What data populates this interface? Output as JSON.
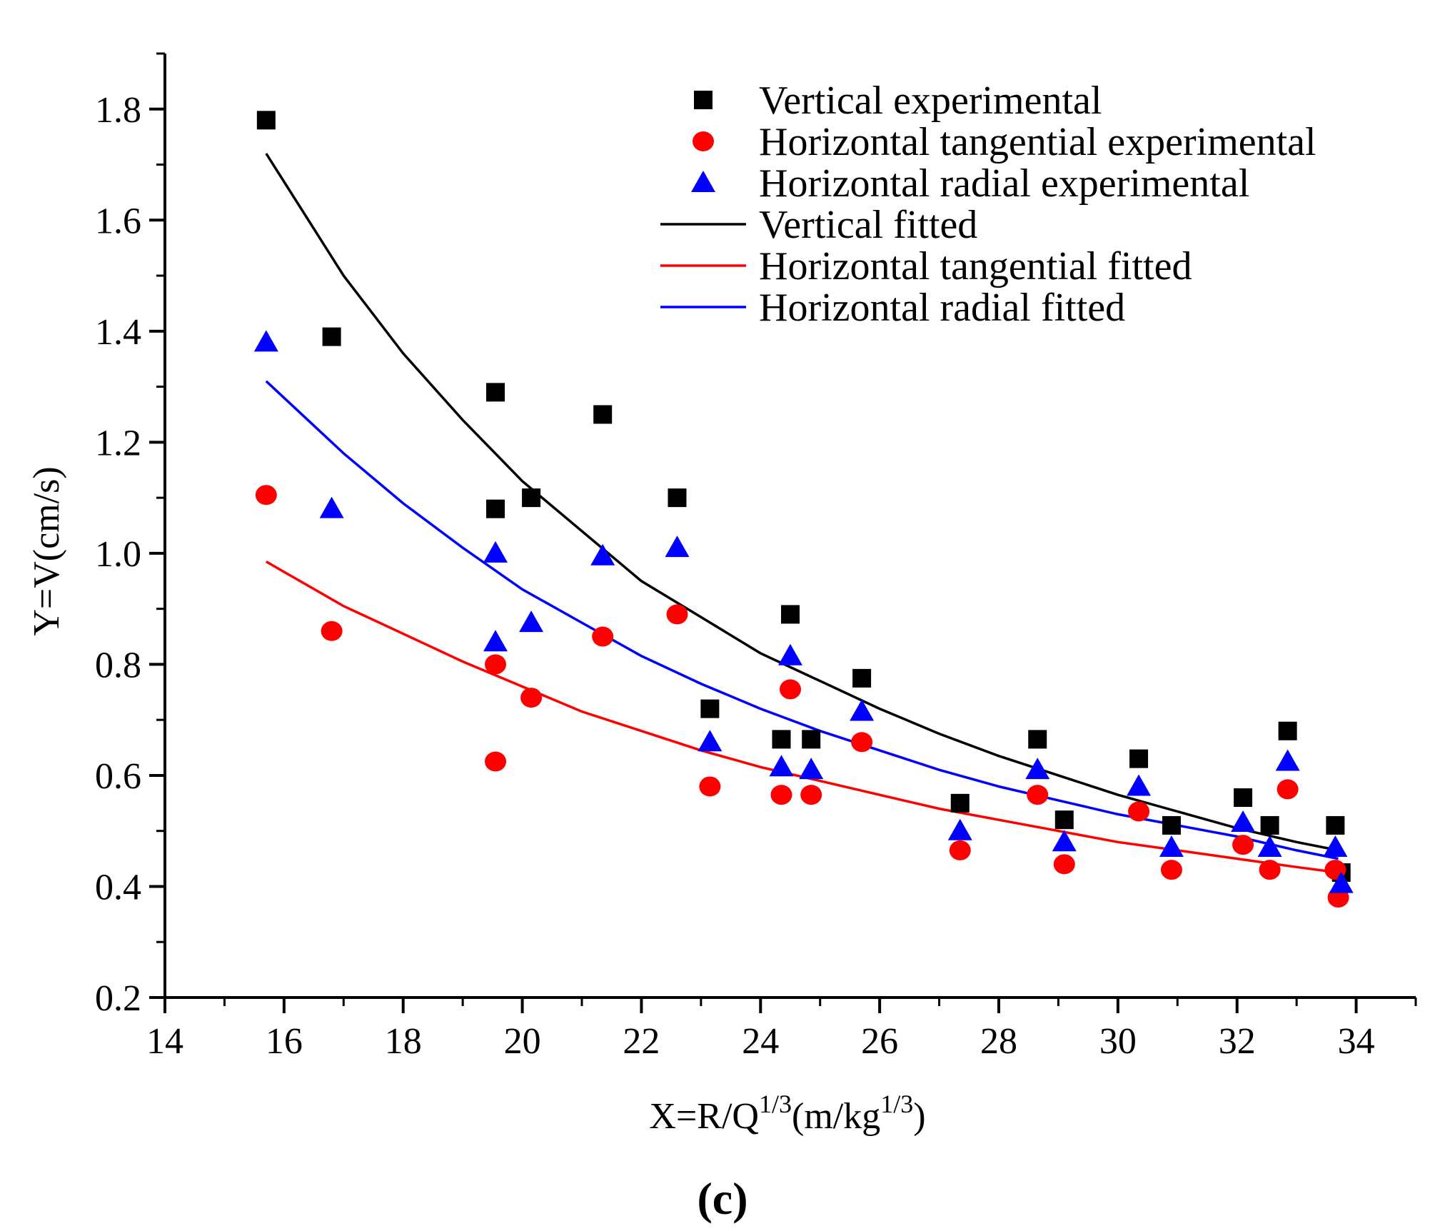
{
  "chart_data": {
    "type": "scatter",
    "panel_label": "(c)",
    "xlabel": {
      "main": "X=R/Q",
      "sup1": "1/3",
      "mid": "(m/kg",
      "sup2": "1/3",
      "end": ")"
    },
    "ylabel": "Y=V(cm/s)",
    "xlim": [
      14,
      35
    ],
    "ylim": [
      0.2,
      1.9
    ],
    "x_ticks": [
      14,
      16,
      18,
      20,
      22,
      24,
      26,
      28,
      30,
      32,
      34
    ],
    "y_ticks": [
      0.2,
      0.4,
      0.6,
      0.8,
      1.0,
      1.2,
      1.4,
      1.6,
      1.8
    ],
    "x_tick_labels": [
      "14",
      "16",
      "18",
      "20",
      "22",
      "24",
      "26",
      "28",
      "30",
      "32",
      "34"
    ],
    "y_tick_labels": [
      "0.2",
      "0.4",
      "0.6",
      "0.8",
      "1.0",
      "1.2",
      "1.4",
      "1.6",
      "1.8"
    ],
    "legend_position": "top-right",
    "legend": [
      {
        "label": "Vertical experimental",
        "kind": "square",
        "color": "#000000"
      },
      {
        "label": "Horizontal tangential experimental",
        "kind": "circle",
        "color": "#ff0000"
      },
      {
        "label": "Horizontal radial experimental",
        "kind": "triangle",
        "color": "#0000ff"
      },
      {
        "label": "Vertical fitted",
        "kind": "line",
        "color": "#000000"
      },
      {
        "label": "Horizontal tangential fitted",
        "kind": "line",
        "color": "#ff0000"
      },
      {
        "label": "Horizontal radial fitted",
        "kind": "line",
        "color": "#0000ff"
      }
    ],
    "series": [
      {
        "name": "Vertical experimental",
        "kind": "square",
        "color": "#000000",
        "points": [
          [
            15.7,
            1.78
          ],
          [
            16.8,
            1.39
          ],
          [
            19.55,
            1.29
          ],
          [
            19.55,
            1.08
          ],
          [
            20.15,
            1.1
          ],
          [
            21.35,
            1.25
          ],
          [
            22.6,
            1.1
          ],
          [
            23.15,
            0.72
          ],
          [
            24.35,
            0.665
          ],
          [
            24.5,
            0.89
          ],
          [
            24.85,
            0.665
          ],
          [
            25.7,
            0.775
          ],
          [
            27.35,
            0.55
          ],
          [
            28.65,
            0.665
          ],
          [
            29.1,
            0.52
          ],
          [
            30.35,
            0.63
          ],
          [
            30.9,
            0.51
          ],
          [
            32.1,
            0.56
          ],
          [
            32.55,
            0.51
          ],
          [
            32.85,
            0.68
          ],
          [
            33.65,
            0.51
          ],
          [
            33.75,
            0.425
          ]
        ]
      },
      {
        "name": "Horizontal tangential experimental",
        "kind": "circle",
        "color": "#ff0000",
        "points": [
          [
            15.7,
            1.105
          ],
          [
            16.8,
            0.86
          ],
          [
            19.55,
            0.8
          ],
          [
            19.55,
            0.625
          ],
          [
            20.15,
            0.74
          ],
          [
            21.35,
            0.85
          ],
          [
            22.6,
            0.89
          ],
          [
            23.15,
            0.58
          ],
          [
            24.35,
            0.565
          ],
          [
            24.5,
            0.755
          ],
          [
            24.85,
            0.565
          ],
          [
            25.7,
            0.66
          ],
          [
            27.35,
            0.465
          ],
          [
            28.65,
            0.565
          ],
          [
            29.1,
            0.44
          ],
          [
            30.35,
            0.535
          ],
          [
            30.9,
            0.43
          ],
          [
            32.1,
            0.475
          ],
          [
            32.55,
            0.43
          ],
          [
            32.85,
            0.575
          ],
          [
            33.65,
            0.43
          ],
          [
            33.7,
            0.38
          ]
        ]
      },
      {
        "name": "Horizontal radial experimental",
        "kind": "triangle",
        "color": "#0000ff",
        "points": [
          [
            15.7,
            1.38
          ],
          [
            16.8,
            1.08
          ],
          [
            19.55,
            1.0
          ],
          [
            19.55,
            0.84
          ],
          [
            20.15,
            0.875
          ],
          [
            21.35,
            0.995
          ],
          [
            22.6,
            1.01
          ],
          [
            23.15,
            0.66
          ],
          [
            24.35,
            0.615
          ],
          [
            24.5,
            0.815
          ],
          [
            24.85,
            0.61
          ],
          [
            25.7,
            0.715
          ],
          [
            27.35,
            0.5
          ],
          [
            28.65,
            0.61
          ],
          [
            29.1,
            0.48
          ],
          [
            30.35,
            0.58
          ],
          [
            30.9,
            0.47
          ],
          [
            32.1,
            0.515
          ],
          [
            32.55,
            0.47
          ],
          [
            32.85,
            0.625
          ],
          [
            33.65,
            0.47
          ],
          [
            33.75,
            0.405
          ]
        ]
      },
      {
        "name": "Vertical fitted",
        "kind": "line",
        "color": "#000000",
        "points": [
          [
            15.7,
            1.72
          ],
          [
            17,
            1.5
          ],
          [
            18,
            1.36
          ],
          [
            19,
            1.24
          ],
          [
            20,
            1.13
          ],
          [
            21,
            1.04
          ],
          [
            22,
            0.95
          ],
          [
            23,
            0.885
          ],
          [
            24,
            0.82
          ],
          [
            25,
            0.77
          ],
          [
            26,
            0.72
          ],
          [
            27,
            0.675
          ],
          [
            28,
            0.635
          ],
          [
            29,
            0.6
          ],
          [
            30,
            0.565
          ],
          [
            31,
            0.535
          ],
          [
            32,
            0.505
          ],
          [
            33,
            0.48
          ],
          [
            33.7,
            0.465
          ]
        ]
      },
      {
        "name": "Horizontal tangential fitted",
        "kind": "line",
        "color": "#ff0000",
        "points": [
          [
            15.7,
            0.985
          ],
          [
            17,
            0.905
          ],
          [
            18,
            0.855
          ],
          [
            19,
            0.805
          ],
          [
            20,
            0.76
          ],
          [
            21,
            0.715
          ],
          [
            22,
            0.68
          ],
          [
            23,
            0.645
          ],
          [
            24,
            0.615
          ],
          [
            25,
            0.59
          ],
          [
            26,
            0.565
          ],
          [
            27,
            0.54
          ],
          [
            28,
            0.52
          ],
          [
            29,
            0.5
          ],
          [
            30,
            0.48
          ],
          [
            31,
            0.465
          ],
          [
            32,
            0.45
          ],
          [
            33,
            0.435
          ],
          [
            33.7,
            0.425
          ]
        ]
      },
      {
        "name": "Horizontal radial fitted",
        "kind": "line",
        "color": "#0000ff",
        "points": [
          [
            15.7,
            1.31
          ],
          [
            17,
            1.18
          ],
          [
            18,
            1.09
          ],
          [
            19,
            1.01
          ],
          [
            20,
            0.935
          ],
          [
            21,
            0.875
          ],
          [
            22,
            0.815
          ],
          [
            23,
            0.765
          ],
          [
            24,
            0.72
          ],
          [
            25,
            0.68
          ],
          [
            26,
            0.645
          ],
          [
            27,
            0.61
          ],
          [
            28,
            0.58
          ],
          [
            29,
            0.555
          ],
          [
            30,
            0.53
          ],
          [
            31,
            0.51
          ],
          [
            32,
            0.49
          ],
          [
            33,
            0.465
          ],
          [
            33.7,
            0.45
          ]
        ]
      }
    ]
  }
}
